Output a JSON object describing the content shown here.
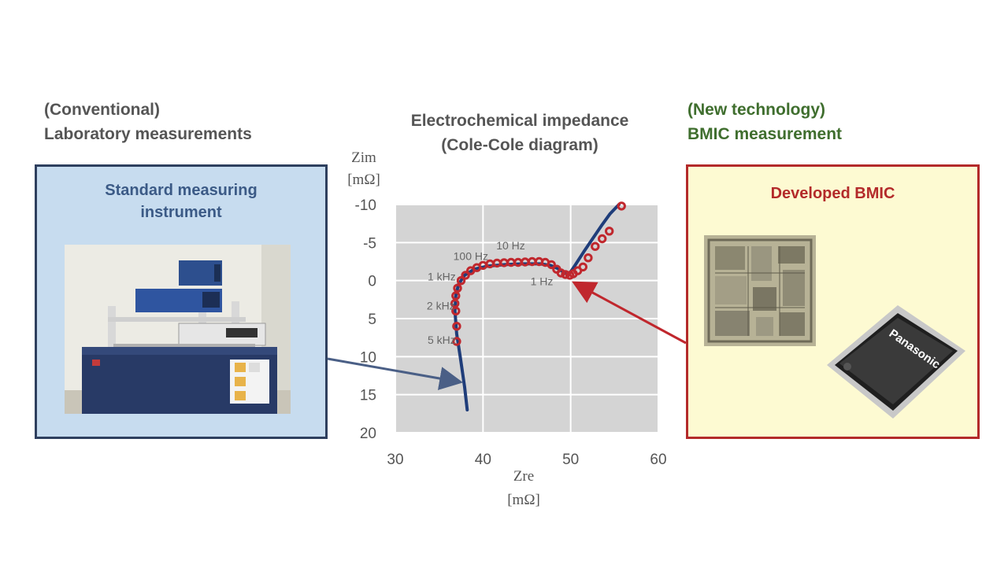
{
  "headings": {
    "left": [
      "(Conventional)",
      "Laboratory measurements"
    ],
    "center": [
      "Electrochemical impedance",
      "(Cole-Cole diagram)"
    ],
    "right": [
      "(New technology)",
      "BMIC measurement"
    ]
  },
  "left_panel": {
    "title": [
      "Standard measuring",
      "instrument"
    ]
  },
  "right_panel": {
    "title": "Developed BMIC",
    "chip_brand": "Panasonic"
  },
  "colors": {
    "left_border": "#2e3f5e",
    "left_fill": "#c7dcef",
    "right_border": "#b32a2a",
    "right_fill": "#fdfad2",
    "right_heading": "#3f6e2e",
    "series_line": "#1f3d7a",
    "series_points": "#c0272d",
    "plot_bg": "#d4d4d4"
  },
  "chart_data": {
    "type": "scatter",
    "title": "Electrochemical impedance (Cole-Cole diagram)",
    "xlabel": [
      "Zre",
      "[mΩ]"
    ],
    "ylabel": [
      "Zim",
      "[mΩ]"
    ],
    "xlim": [
      30,
      60
    ],
    "ylim": [
      -10,
      20
    ],
    "y_inverted": true,
    "grid": true,
    "x_ticks": [
      "30",
      "40",
      "50",
      "60"
    ],
    "y_ticks": [
      "-10",
      "-5",
      "0",
      "5",
      "10",
      "15",
      "20"
    ],
    "series": [
      {
        "style": "line",
        "x": [
          38.2,
          37.9,
          37.4,
          37.0,
          36.8,
          36.9,
          37.2,
          37.9,
          39.0,
          40.5,
          42.5,
          44.5,
          46.5,
          47.7,
          48.7,
          49.3,
          49.8,
          50.5,
          51.5,
          52.5,
          53.5,
          54.5,
          55.5
        ],
        "y": [
          17,
          14,
          10,
          7,
          4,
          2,
          0.5,
          -0.7,
          -1.5,
          -1.9,
          -2.1,
          -2.2,
          -2.2,
          -2.0,
          -1.5,
          -1.0,
          -0.8,
          -2.0,
          -3.8,
          -5.5,
          -7.2,
          -8.8,
          -10.0
        ]
      },
      {
        "style": "points",
        "x": [
          37.0,
          37.0,
          36.9,
          36.8,
          36.9,
          37.1,
          37.5,
          38.0,
          38.6,
          39.3,
          40.0,
          40.8,
          41.6,
          42.4,
          43.2,
          44.0,
          44.8,
          45.6,
          46.4,
          47.1,
          47.8,
          48.4,
          48.9,
          49.4,
          49.9,
          50.3,
          50.8,
          51.4,
          52.0,
          52.8,
          53.6,
          54.4,
          55.8
        ],
        "y": [
          8,
          6,
          4,
          3,
          2,
          1,
          0,
          -0.7,
          -1.3,
          -1.7,
          -2.0,
          -2.2,
          -2.3,
          -2.35,
          -2.4,
          -2.4,
          -2.45,
          -2.5,
          -2.5,
          -2.4,
          -2.1,
          -1.5,
          -1.0,
          -0.8,
          -0.7,
          -0.9,
          -1.3,
          -1.8,
          -3.0,
          -4.5,
          -5.5,
          -6.5,
          -9.8
        ]
      }
    ],
    "annotations": [
      {
        "text": "10 Hz",
        "x": 44.8,
        "y": -4.1
      },
      {
        "text": "100 Hz",
        "x": 40.6,
        "y": -2.7
      },
      {
        "text": "1 kHz",
        "x": 36.9,
        "y": 0.0
      },
      {
        "text": "2 kHz",
        "x": 36.8,
        "y": 3.8
      },
      {
        "text": "5 kHz",
        "x": 36.9,
        "y": 8.3
      },
      {
        "text": "1 Hz",
        "x": 48.0,
        "y": 0.6
      }
    ],
    "arrows": [
      {
        "from_panel": "left",
        "to": {
          "x": 37.2,
          "y": 13.3
        }
      },
      {
        "from_panel": "right",
        "to": {
          "x": 50.6,
          "y": 0.4
        }
      }
    ]
  }
}
